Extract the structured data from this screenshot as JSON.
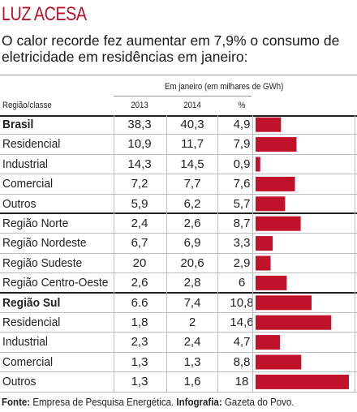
{
  "title": "LUZ ACESA",
  "subtitle": "O calor recorde fez aumentar em 7,9% o consumo de eletricidade em residências em janeiro:",
  "table": {
    "supergroup_header": "Em janeiro (em milhares de GWh)",
    "col_label": "Região/classe",
    "col_2013": "2013",
    "col_2014": "2014",
    "col_pct": "%"
  },
  "source": {
    "label1": "Fonte:",
    "text1": "Empresa de Pesquisa Energética.",
    "label2": "Infografia:",
    "text2": "Gazeta do Povo."
  },
  "colors": {
    "title": "#b8122a",
    "bar": "#c0122a"
  },
  "chart_data": {
    "type": "table",
    "x_max": 18,
    "rows": [
      {
        "label": "Brasil",
        "y2013": "38,3",
        "y2014": "40,3",
        "pct": "4,9",
        "value": 4.9,
        "bold": true,
        "groupEnd": false
      },
      {
        "label": "Residencial",
        "y2013": "10,9",
        "y2014": "11,7",
        "pct": "7,9",
        "value": 7.9,
        "bold": false,
        "groupEnd": false
      },
      {
        "label": "Industrial",
        "y2013": "14,3",
        "y2014": "14,5",
        "pct": "0,9",
        "value": 0.9,
        "bold": false,
        "groupEnd": false
      },
      {
        "label": "Comercial",
        "y2013": "7,2",
        "y2014": "7,7",
        "pct": "7,6",
        "value": 7.6,
        "bold": false,
        "groupEnd": false
      },
      {
        "label": "Outros",
        "y2013": "5,9",
        "y2014": "6,2",
        "pct": "5,7",
        "value": 5.7,
        "bold": false,
        "groupEnd": true
      },
      {
        "label": "Região Norte",
        "y2013": "2,4",
        "y2014": "2,6",
        "pct": "8,7",
        "value": 8.7,
        "bold": false,
        "groupEnd": false
      },
      {
        "label": "Região Nordeste",
        "y2013": "6,7",
        "y2014": "6,9",
        "pct": "3,3",
        "value": 3.3,
        "bold": false,
        "groupEnd": false
      },
      {
        "label": "Região Sudeste",
        "y2013": "20",
        "y2014": "20,6",
        "pct": "2,9",
        "value": 2.9,
        "bold": false,
        "groupEnd": false
      },
      {
        "label": "Região Centro-Oeste",
        "y2013": "2,6",
        "y2014": "2,8",
        "pct": "6",
        "value": 6,
        "bold": false,
        "groupEnd": true
      },
      {
        "label": "Região Sul",
        "y2013": "6.6",
        "y2014": "7,4",
        "pct": "10,8",
        "value": 10.8,
        "bold": true,
        "groupEnd": false
      },
      {
        "label": "Residencial",
        "y2013": "1,8",
        "y2014": "2",
        "pct": "14,6",
        "value": 14.6,
        "bold": false,
        "groupEnd": false
      },
      {
        "label": "Industrial",
        "y2013": "2,3",
        "y2014": "2,4",
        "pct": "4,7",
        "value": 4.7,
        "bold": false,
        "groupEnd": false
      },
      {
        "label": "Comercial",
        "y2013": "1,3",
        "y2014": "1,3",
        "pct": "8,8",
        "value": 8.8,
        "bold": false,
        "groupEnd": false
      },
      {
        "label": "Outros",
        "y2013": "1,3",
        "y2014": "1,6",
        "pct": "18",
        "value": 18,
        "bold": false,
        "groupEnd": false
      }
    ]
  }
}
